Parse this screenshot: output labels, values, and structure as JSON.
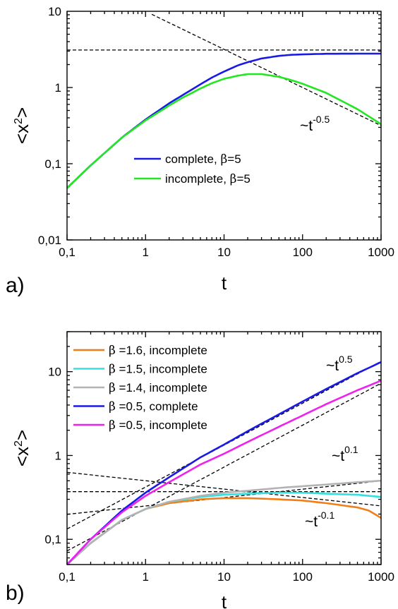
{
  "chart_data": [
    {
      "panel_label": "a)",
      "type": "line",
      "xscale": "log",
      "yscale": "log",
      "xlim": [
        0.1,
        1000
      ],
      "ylim": [
        0.01,
        10
      ],
      "xlabel": "t",
      "ylabel": "<x²>",
      "xticks": [
        "0,1",
        "1",
        "10",
        "100",
        "1000"
      ],
      "yticks": [
        "0,01",
        "0,1",
        "1",
        "10"
      ],
      "legend_position": "center",
      "series": [
        {
          "name": "complete, β=5",
          "color": "#1a1ae6",
          "x": [
            0.1,
            0.2,
            0.5,
            1,
            2,
            3,
            5,
            7,
            10,
            15,
            20,
            30,
            50,
            70,
            100,
            200,
            500,
            1000
          ],
          "y": [
            0.048,
            0.095,
            0.22,
            0.38,
            0.62,
            0.8,
            1.1,
            1.35,
            1.62,
            1.95,
            2.15,
            2.4,
            2.6,
            2.68,
            2.72,
            2.77,
            2.78,
            2.78
          ]
        },
        {
          "name": "incomplete, β=5",
          "color": "#22e622",
          "x": [
            0.1,
            0.2,
            0.5,
            1,
            2,
            3,
            5,
            7,
            10,
            15,
            20,
            30,
            50,
            70,
            100,
            200,
            500,
            1000
          ],
          "y": [
            0.048,
            0.095,
            0.22,
            0.37,
            0.58,
            0.74,
            0.97,
            1.14,
            1.3,
            1.43,
            1.5,
            1.5,
            1.38,
            1.26,
            1.12,
            0.85,
            0.52,
            0.33
          ]
        }
      ],
      "guides": [
        {
          "kind": "power",
          "A": 10.0,
          "p": -0.5,
          "x_from": 1.2,
          "x_to": 1000
        },
        {
          "kind": "power",
          "A": 3.1,
          "p": 0,
          "x_from": 0.1,
          "x_to": 1000
        }
      ],
      "annotations": [
        {
          "text": "~t",
          "sup": "-0.5",
          "x": 300,
          "y": 0.38
        }
      ]
    },
    {
      "panel_label": "b)",
      "type": "line",
      "xscale": "log",
      "yscale": "log",
      "xlim": [
        0.1,
        1000
      ],
      "ylim": [
        0.05,
        30
      ],
      "xlabel": "t",
      "ylabel": "<x²>",
      "xticks": [
        "0,1",
        "1",
        "10",
        "100",
        "1000"
      ],
      "yticks": [
        "0,1",
        "1",
        "10"
      ],
      "legend_position": "top-left",
      "series": [
        {
          "name": "β =1.6, incomplete",
          "color": "#f07f1a",
          "x": [
            0.1,
            0.2,
            0.5,
            1,
            2,
            5,
            10,
            20,
            50,
            100,
            200,
            500,
            700,
            1000
          ],
          "y": [
            0.05,
            0.09,
            0.17,
            0.23,
            0.27,
            0.3,
            0.31,
            0.31,
            0.3,
            0.29,
            0.27,
            0.24,
            0.22,
            0.18
          ]
        },
        {
          "name": "β =1.5, incomplete",
          "color": "#33e0e0",
          "x": [
            0.1,
            0.2,
            0.5,
            1,
            2,
            5,
            10,
            20,
            50,
            100,
            200,
            500,
            1000
          ],
          "y": [
            0.05,
            0.09,
            0.17,
            0.23,
            0.28,
            0.32,
            0.34,
            0.35,
            0.36,
            0.36,
            0.35,
            0.34,
            0.32
          ]
        },
        {
          "name": "β =1.4, incomplete",
          "color": "#b3b3b3",
          "x": [
            0.1,
            0.2,
            0.5,
            1,
            2,
            5,
            10,
            20,
            50,
            100,
            200,
            500,
            1000
          ],
          "y": [
            0.05,
            0.09,
            0.17,
            0.23,
            0.28,
            0.33,
            0.36,
            0.38,
            0.41,
            0.43,
            0.45,
            0.48,
            0.5
          ]
        },
        {
          "name": "β =0.5, complete",
          "color": "#1a1ae6",
          "x": [
            0.1,
            0.2,
            0.5,
            1,
            2,
            5,
            10,
            20,
            50,
            100,
            200,
            500,
            1000
          ],
          "y": [
            0.05,
            0.1,
            0.22,
            0.36,
            0.55,
            0.95,
            1.35,
            1.95,
            3.1,
            4.4,
            6.2,
            9.6,
            13.0
          ]
        },
        {
          "name": "β =0.5, incomplete",
          "color": "#ee22ee",
          "x": [
            0.1,
            0.2,
            0.5,
            1,
            2,
            5,
            10,
            20,
            50,
            100,
            200,
            500,
            1000
          ],
          "y": [
            0.05,
            0.1,
            0.21,
            0.33,
            0.48,
            0.78,
            1.05,
            1.45,
            2.2,
            3.0,
            4.1,
            6.0,
            7.8
          ]
        }
      ],
      "guides": [
        {
          "kind": "power",
          "A": 0.23,
          "p": 0.5,
          "x_from": 0.1,
          "x_to": 1000
        },
        {
          "kind": "power",
          "A": 0.42,
          "p": 0.5,
          "x_from": 0.1,
          "x_to": 1000
        },
        {
          "kind": "power",
          "A": 0.25,
          "p": 0.1,
          "x_from": 0.1,
          "x_to": 1000
        },
        {
          "kind": "power",
          "A": 0.37,
          "p": 0,
          "x_from": 0.1,
          "x_to": 1000
        },
        {
          "kind": "power",
          "A": 0.5,
          "p": -0.1,
          "x_from": 0.1,
          "x_to": 1000
        }
      ],
      "annotations": [
        {
          "text": "~t",
          "sup": "0.5",
          "x": 150,
          "y": 13.5
        },
        {
          "text": "~t",
          "sup": "0.1",
          "x": 150,
          "y": 0.62
        },
        {
          "text": "~t",
          "sup": "-0.1",
          "x": 120,
          "y": 0.115
        }
      ]
    }
  ]
}
